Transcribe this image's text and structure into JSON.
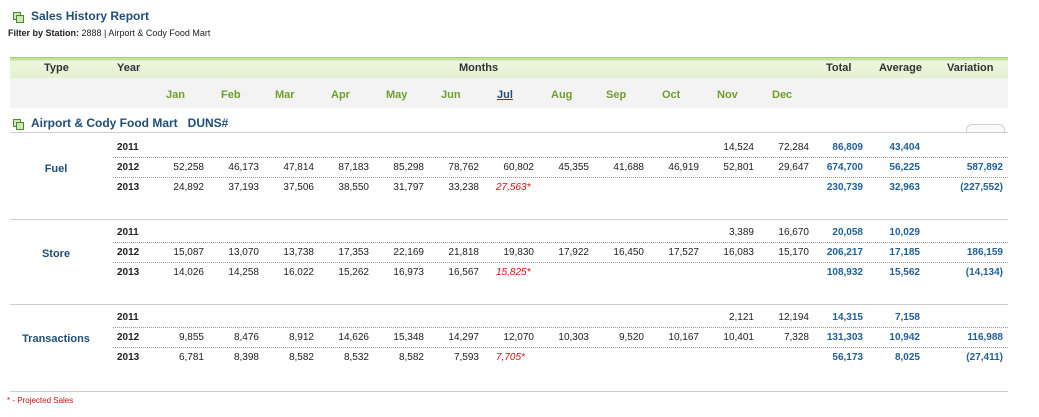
{
  "report": {
    "title": "Sales History Report",
    "filter_label": "Filter by Station:",
    "filter_value": " 2888 | Airport & Cody Food Mart"
  },
  "header": {
    "type": "Type",
    "year": "Year",
    "months": "Months",
    "total": "Total",
    "average": "Average",
    "variation": "Variation"
  },
  "months": [
    "Jan",
    "Feb",
    "Mar",
    "Apr",
    "May",
    "Jun",
    "Jul",
    "Aug",
    "Sep",
    "Oct",
    "Nov",
    "Dec"
  ],
  "station": {
    "name": "Airport & Cody Food Mart",
    "duns": "DUNS#"
  },
  "groups": [
    {
      "label": "Fuel",
      "rows": [
        {
          "year": "2011",
          "values": [
            "",
            "",
            "",
            "",
            "",
            "",
            "",
            "",
            "",
            "",
            "14,524",
            "72,284"
          ],
          "total": "86,809",
          "average": "43,404",
          "variation": ""
        },
        {
          "year": "2012",
          "values": [
            "52,258",
            "46,173",
            "47,814",
            "87,183",
            "85,298",
            "78,762",
            "60,802",
            "45,355",
            "41,688",
            "46,919",
            "52,801",
            "29,647"
          ],
          "total": "674,700",
          "average": "56,225",
          "variation": "587,892"
        },
        {
          "year": "2013",
          "values": [
            "24,892",
            "37,193",
            "37,506",
            "38,550",
            "31,797",
            "33,238",
            "27,563*",
            "",
            "",
            "",
            "",
            ""
          ],
          "total": "230,739",
          "average": "32,963",
          "variation": "(227,552)"
        }
      ]
    },
    {
      "label": "Store",
      "rows": [
        {
          "year": "2011",
          "values": [
            "",
            "",
            "",
            "",
            "",
            "",
            "",
            "",
            "",
            "",
            "3,389",
            "16,670"
          ],
          "total": "20,058",
          "average": "10,029",
          "variation": ""
        },
        {
          "year": "2012",
          "values": [
            "15,087",
            "13,070",
            "13,738",
            "17,353",
            "22,169",
            "21,818",
            "19,830",
            "17,922",
            "16,450",
            "17,527",
            "16,083",
            "15,170"
          ],
          "total": "206,217",
          "average": "17,185",
          "variation": "186,159"
        },
        {
          "year": "2013",
          "values": [
            "14,026",
            "14,258",
            "16,022",
            "15,262",
            "16,973",
            "16,567",
            "15,825*",
            "",
            "",
            "",
            "",
            ""
          ],
          "total": "108,932",
          "average": "15,562",
          "variation": "(14,134)"
        }
      ]
    },
    {
      "label": "Transactions",
      "rows": [
        {
          "year": "2011",
          "values": [
            "",
            "",
            "",
            "",
            "",
            "",
            "",
            "",
            "",
            "",
            "2,121",
            "12,194"
          ],
          "total": "14,315",
          "average": "7,158",
          "variation": ""
        },
        {
          "year": "2012",
          "values": [
            "9,855",
            "8,476",
            "8,912",
            "14,626",
            "15,348",
            "14,297",
            "12,070",
            "10,303",
            "9,520",
            "10,167",
            "10,401",
            "7,328"
          ],
          "total": "131,303",
          "average": "10,942",
          "variation": "116,988"
        },
        {
          "year": "2013",
          "values": [
            "6,781",
            "8,398",
            "8,582",
            "8,532",
            "8,582",
            "7,593",
            "7,705*",
            "",
            "",
            "",
            "",
            ""
          ],
          "total": "56,173",
          "average": "8,025",
          "variation": "(27,411)"
        }
      ]
    }
  ],
  "footnote": "* - Projected Sales",
  "colors": {
    "accent_blue": "#1f5f9a",
    "month_green": "#6f9f2e",
    "projected_red": "#d01010",
    "header_green": "#c6e29a"
  }
}
